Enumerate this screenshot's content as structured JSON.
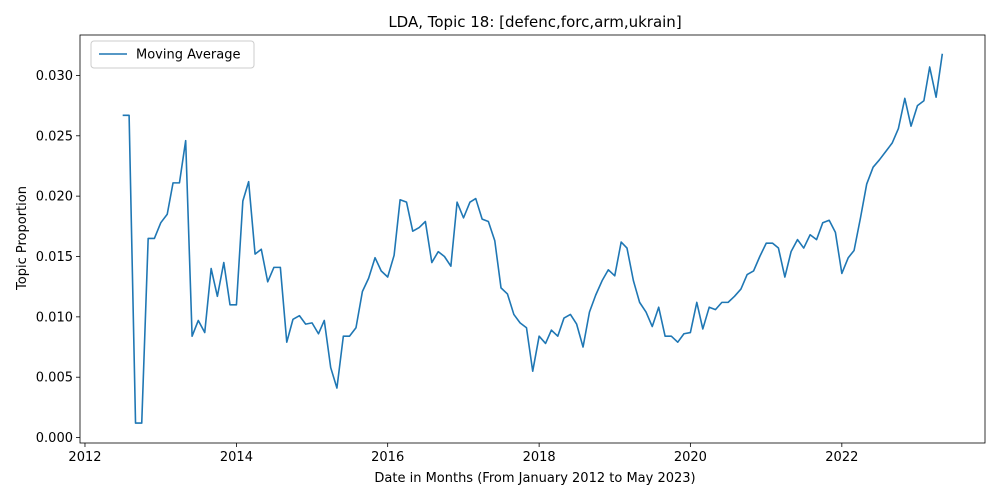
{
  "chart_data": {
    "type": "line",
    "title": "LDA, Topic 18: [defenc,forc,arm,ukrain]",
    "xlabel": "Date in Months (From January 2012 to May 2023)",
    "ylabel": "Topic Proportion",
    "xlim": [
      "2011-12-08",
      "2023-11-23"
    ],
    "ylim": [
      -0.00045,
      0.03335
    ],
    "x_ticks": [
      {
        "date": "2012-01-01",
        "label": "2012"
      },
      {
        "date": "2014-01-01",
        "label": "2014"
      },
      {
        "date": "2016-01-01",
        "label": "2016"
      },
      {
        "date": "2018-01-01",
        "label": "2018"
      },
      {
        "date": "2020-01-01",
        "label": "2020"
      },
      {
        "date": "2022-01-01",
        "label": "2022"
      }
    ],
    "y_ticks": [
      {
        "value": 0.0,
        "label": "0.000"
      },
      {
        "value": 0.005,
        "label": "0.005"
      },
      {
        "value": 0.01,
        "label": "0.010"
      },
      {
        "value": 0.015,
        "label": "0.015"
      },
      {
        "value": 0.02,
        "label": "0.020"
      },
      {
        "value": 0.025,
        "label": "0.025"
      },
      {
        "value": 0.03,
        "label": "0.030"
      }
    ],
    "grid": false,
    "legend": {
      "position": "top-left",
      "entries": [
        "Moving Average"
      ]
    },
    "series": [
      {
        "name": "Moving Average",
        "color": "#1f77b4",
        "start_month": "2012-07",
        "values": [
          0.0267,
          0.0267,
          0.0012,
          0.0012,
          0.0165,
          0.0165,
          0.0178,
          0.0185,
          0.0211,
          0.0211,
          0.0246,
          0.0084,
          0.0097,
          0.0087,
          0.014,
          0.0117,
          0.0145,
          0.011,
          0.011,
          0.0196,
          0.0212,
          0.0152,
          0.0156,
          0.0129,
          0.0141,
          0.0141,
          0.0079,
          0.0098,
          0.0101,
          0.0094,
          0.0095,
          0.0086,
          0.0097,
          0.0058,
          0.0041,
          0.0084,
          0.0084,
          0.0091,
          0.0121,
          0.0132,
          0.0149,
          0.0138,
          0.0133,
          0.0151,
          0.0197,
          0.0195,
          0.0171,
          0.0174,
          0.0179,
          0.0145,
          0.0154,
          0.015,
          0.0142,
          0.0195,
          0.0182,
          0.0195,
          0.0198,
          0.0181,
          0.0179,
          0.0163,
          0.0124,
          0.0119,
          0.0102,
          0.0095,
          0.0091,
          0.0055,
          0.0084,
          0.0078,
          0.0089,
          0.0084,
          0.0099,
          0.0102,
          0.0094,
          0.0075,
          0.0104,
          0.0118,
          0.013,
          0.0139,
          0.0134,
          0.0162,
          0.0157,
          0.013,
          0.0112,
          0.0104,
          0.0092,
          0.0108,
          0.0084,
          0.0084,
          0.0079,
          0.0086,
          0.0087,
          0.0112,
          0.009,
          0.0108,
          0.0106,
          0.0112,
          0.0112,
          0.0117,
          0.0123,
          0.0135,
          0.0138,
          0.015,
          0.0161,
          0.0161,
          0.0157,
          0.0133,
          0.0154,
          0.0164,
          0.0157,
          0.0168,
          0.0164,
          0.0178,
          0.018,
          0.017,
          0.0136,
          0.0149,
          0.0155,
          0.0182,
          0.021,
          0.0224,
          0.023,
          0.0237,
          0.0244,
          0.0256,
          0.0281,
          0.0258,
          0.0275,
          0.0279,
          0.0307,
          0.0282,
          0.0318
        ]
      }
    ]
  }
}
